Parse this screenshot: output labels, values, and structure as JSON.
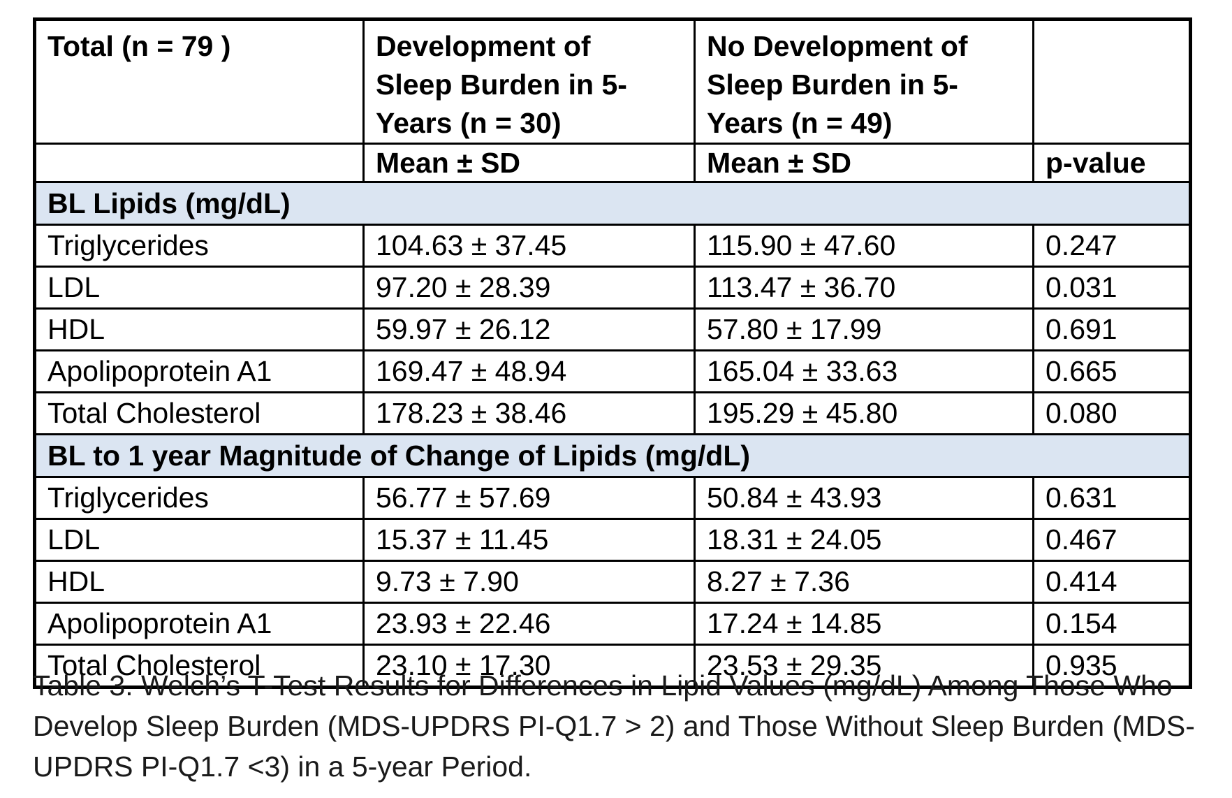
{
  "colors": {
    "section_bg": "#dbe5f2",
    "border": "#000000",
    "text": "#000000",
    "caption_text": "#1a1a1a"
  },
  "table": {
    "header_row1": [
      {
        "lines": [
          "Total (n = 79 )"
        ]
      },
      {
        "lines": [
          "Development of",
          "Sleep Burden in 5-",
          "Years (n = 30)"
        ]
      },
      {
        "lines": [
          "No Development of",
          "Sleep Burden in 5-",
          "Years (n = 49)"
        ]
      },
      {
        "lines": []
      }
    ],
    "header_row2": [
      "",
      "Mean ± SD",
      "Mean ± SD",
      "p-value"
    ],
    "sections": [
      {
        "title": "BL Lipids (mg/dL)",
        "rows": [
          {
            "label": "Triglycerides",
            "group1": "104.63 ± 37.45",
            "group2": "115.90 ± 47.60",
            "p": "0.247",
            "p_bold": false
          },
          {
            "label": "LDL",
            "group1": "97.20 ± 28.39",
            "group2": "113.47 ± 36.70",
            "p": "0.031",
            "p_bold": true
          },
          {
            "label": "HDL",
            "group1": "59.97 ± 26.12",
            "group2": "57.80 ± 17.99",
            "p": "0.691",
            "p_bold": false
          },
          {
            "label": "Apolipoprotein A1",
            "group1": "169.47 ± 48.94",
            "group2": "165.04 ± 33.63",
            "p": "0.665",
            "p_bold": false
          },
          {
            "label": "Total Cholesterol",
            "group1": "178.23 ± 38.46",
            "group2": "195.29 ± 45.80",
            "p": "0.080",
            "p_bold": false
          }
        ]
      },
      {
        "title": "BL to 1 year Magnitude of Change of Lipids (mg/dL)",
        "rows": [
          {
            "label": "Triglycerides",
            "group1": "56.77 ± 57.69",
            "group2": "50.84 ± 43.93",
            "p": "0.631",
            "p_bold": false
          },
          {
            "label": "LDL",
            "group1": "15.37 ± 11.45",
            "group2": "18.31 ± 24.05",
            "p": "0.467",
            "p_bold": false
          },
          {
            "label": "HDL",
            "group1": "9.73 ± 7.90",
            "group2": "8.27 ± 7.36",
            "p": "0.414",
            "p_bold": false
          },
          {
            "label": "Apolipoprotein A1",
            "group1": "23.93 ± 22.46",
            "group2": "17.24 ± 14.85",
            "p": "0.154",
            "p_bold": false
          },
          {
            "label": "Total Cholesterol",
            "group1": "23.10 ± 17.30",
            "group2": "23.53 ± 29.35",
            "p": "0.935",
            "p_bold": false
          }
        ]
      }
    ]
  },
  "caption": {
    "lines": [
      "Table 3. Welch’s T-Test Results for Differences in Lipid Values (mg/dL) Among Those Who",
      "Develop Sleep Burden (MDS-UPDRS PI-Q1.7 > 2) and Those Without Sleep Burden (MDS-",
      "UPDRS PI-Q1.7 <3) in a 5-year Period."
    ]
  }
}
